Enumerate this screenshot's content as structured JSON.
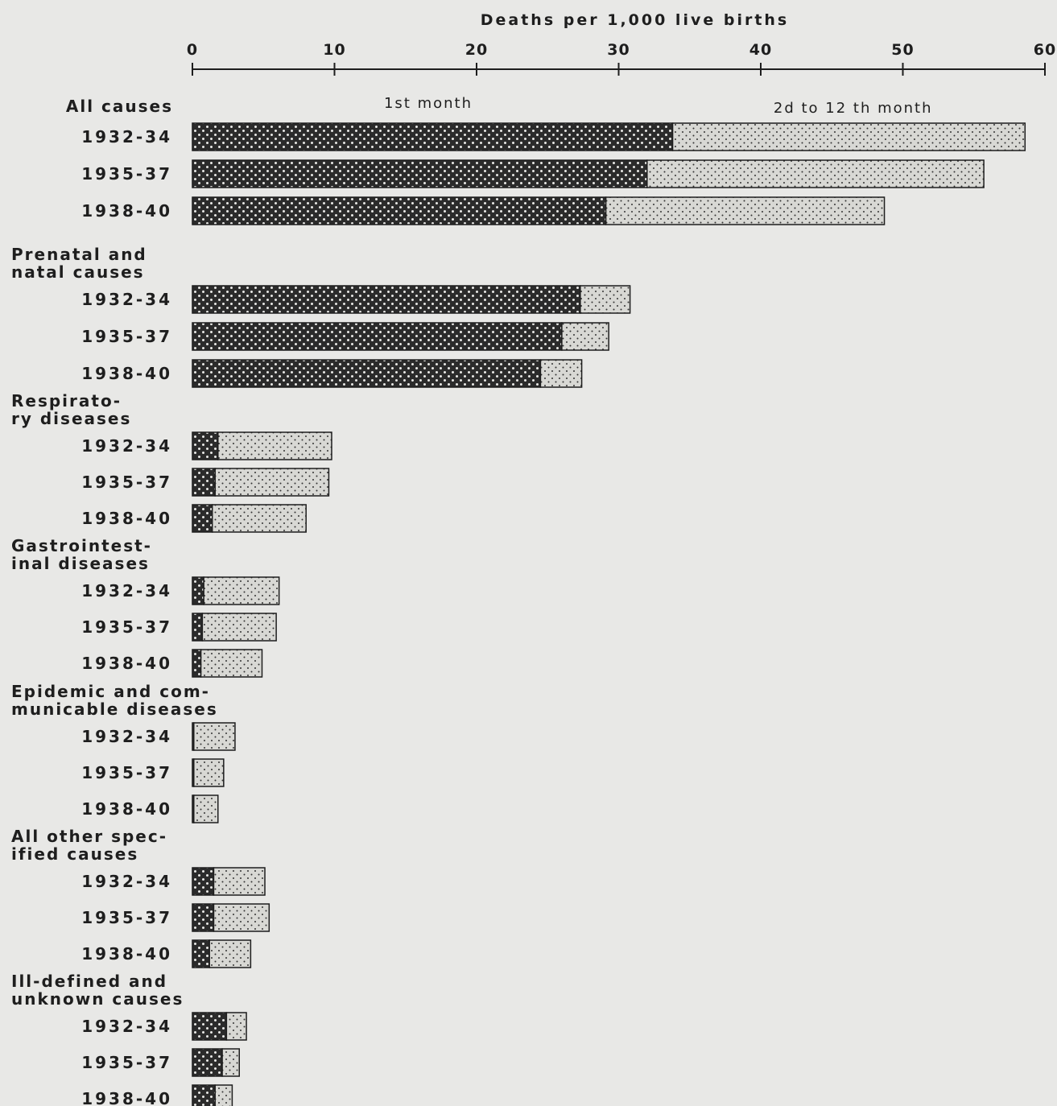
{
  "chart_data": {
    "type": "bar",
    "orientation": "horizontal",
    "stacked": true,
    "xlabel": "Deaths per 1,000 live births",
    "xlim": [
      0,
      60
    ],
    "x_ticks": [
      0,
      10,
      20,
      30,
      40,
      50,
      60
    ],
    "series": [
      {
        "name": "1st month",
        "color": "#2b2b2b"
      },
      {
        "name": "2d to 12 th month",
        "color": "#d8d8d4"
      }
    ],
    "groups": [
      {
        "label_lines": [
          "All causes"
        ],
        "rows": [
          {
            "label": "1932-34",
            "values": [
              33.8,
              24.8
            ]
          },
          {
            "label": "1935-37",
            "values": [
              32.0,
              23.7
            ]
          },
          {
            "label": "1938-40",
            "values": [
              29.1,
              19.6
            ]
          }
        ]
      },
      {
        "label_lines": [
          "Prenatal and",
          "natal causes"
        ],
        "rows": [
          {
            "label": "1932-34",
            "values": [
              27.3,
              3.5
            ]
          },
          {
            "label": "1935-37",
            "values": [
              26.0,
              3.3
            ]
          },
          {
            "label": "1938-40",
            "values": [
              24.5,
              2.9
            ]
          }
        ]
      },
      {
        "label_lines": [
          "Respirato-",
          "ry diseases"
        ],
        "rows": [
          {
            "label": "1932-34",
            "values": [
              1.8,
              8.0
            ]
          },
          {
            "label": "1935-37",
            "values": [
              1.6,
              8.0
            ]
          },
          {
            "label": "1938-40",
            "values": [
              1.4,
              6.6
            ]
          }
        ]
      },
      {
        "label_lines": [
          "Gastrointest-",
          "inal diseases"
        ],
        "rows": [
          {
            "label": "1932-34",
            "values": [
              0.8,
              5.3
            ]
          },
          {
            "label": "1935-37",
            "values": [
              0.7,
              5.2
            ]
          },
          {
            "label": "1938-40",
            "values": [
              0.6,
              4.3
            ]
          }
        ]
      },
      {
        "label_lines": [
          "Epidemic and com-",
          "municable diseases"
        ],
        "rows": [
          {
            "label": "1932-34",
            "values": [
              0.1,
              2.9
            ]
          },
          {
            "label": "1935-37",
            "values": [
              0.1,
              2.1
            ]
          },
          {
            "label": "1938-40",
            "values": [
              0.1,
              1.7
            ]
          }
        ]
      },
      {
        "label_lines": [
          "All other spec-",
          "ified  causes"
        ],
        "rows": [
          {
            "label": "1932-34",
            "values": [
              1.5,
              3.6
            ]
          },
          {
            "label": "1935-37",
            "values": [
              1.5,
              3.9
            ]
          },
          {
            "label": "1938-40",
            "values": [
              1.2,
              2.9
            ]
          }
        ]
      },
      {
        "label_lines": [
          "Ill-defined and",
          "unknown causes"
        ],
        "rows": [
          {
            "label": "1932-34",
            "values": [
              2.4,
              1.4
            ]
          },
          {
            "label": "1935-37",
            "values": [
              2.1,
              1.2
            ]
          },
          {
            "label": "1938-40",
            "values": [
              1.6,
              1.2
            ]
          }
        ]
      }
    ]
  }
}
